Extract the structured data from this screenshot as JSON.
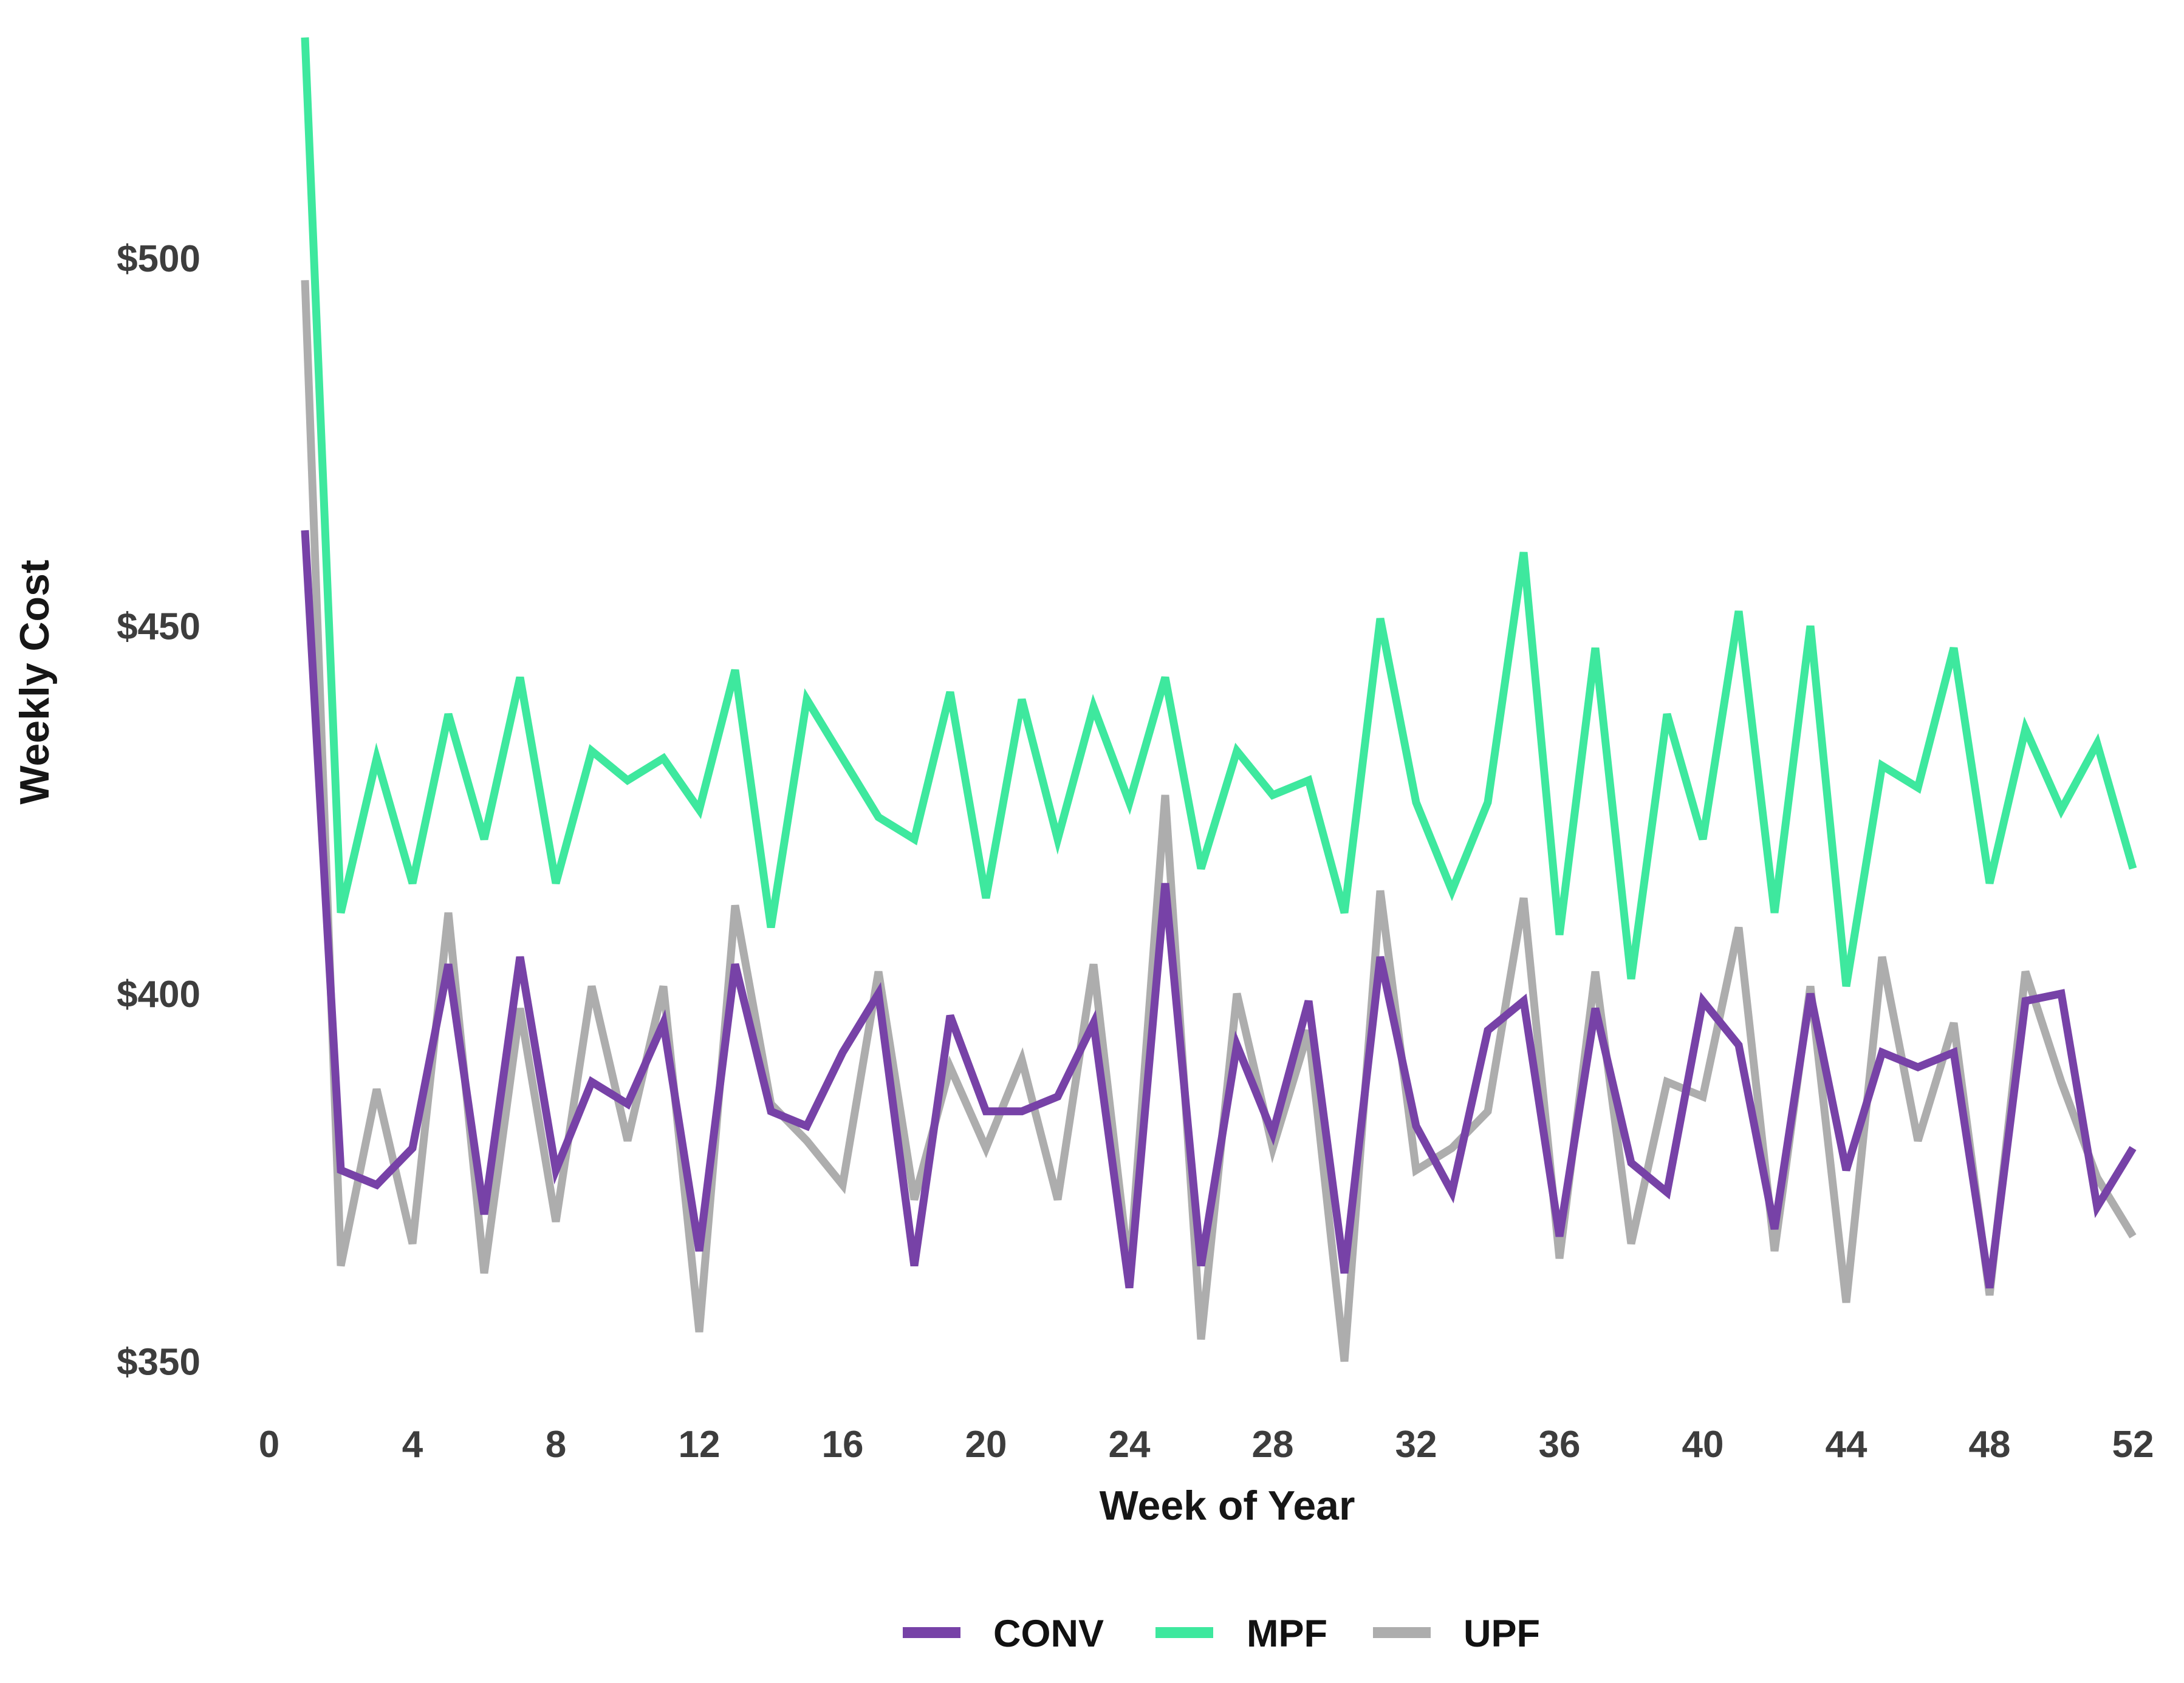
{
  "chart_data": {
    "type": "line",
    "title": "",
    "xlabel": "Week of Year",
    "ylabel": "Weekly Cost",
    "x_tick_values": [
      0,
      4,
      8,
      12,
      16,
      20,
      24,
      28,
      32,
      36,
      40,
      44,
      48,
      52
    ],
    "x_tick_labels": [
      "0",
      "4",
      "8",
      "12",
      "16",
      "20",
      "24",
      "28",
      "32",
      "36",
      "40",
      "44",
      "48",
      "52"
    ],
    "y_tick_values": [
      350,
      400,
      450,
      500
    ],
    "y_tick_labels": [
      "$350",
      "$400",
      "$450",
      "$500"
    ],
    "xlim": [
      0,
      53
    ],
    "ylim": [
      340,
      535
    ],
    "grid": false,
    "legend_position": "bottom",
    "weeks": [
      1,
      2,
      3,
      4,
      5,
      6,
      7,
      8,
      9,
      10,
      11,
      12,
      13,
      14,
      15,
      16,
      17,
      18,
      19,
      20,
      21,
      22,
      23,
      24,
      25,
      26,
      27,
      28,
      29,
      30,
      31,
      32,
      33,
      34,
      35,
      36,
      37,
      38,
      39,
      40,
      41,
      42,
      43,
      44,
      45,
      46,
      47,
      48,
      49,
      50,
      51,
      52
    ],
    "series": [
      {
        "name": "CONV",
        "color": "#7742a7",
        "values": [
          463,
          376,
          374,
          379,
          404,
          370,
          405,
          376,
          388,
          385,
          396,
          365,
          404,
          384,
          382,
          392,
          400,
          363,
          397,
          384,
          384,
          386,
          396,
          360,
          415,
          363,
          393,
          381,
          399,
          362,
          405,
          382,
          373,
          395,
          399,
          367,
          398,
          377,
          373,
          399,
          393,
          368,
          400,
          376,
          392,
          390,
          392,
          360,
          399,
          400,
          371,
          379
        ]
      },
      {
        "name": "MPF",
        "color": "#3ee89e",
        "values": [
          530,
          411,
          432,
          415,
          438,
          421,
          443,
          415,
          433,
          429,
          432,
          425,
          444,
          409,
          440,
          432,
          424,
          421,
          441,
          413,
          440,
          421,
          439,
          426,
          443,
          417,
          433,
          427,
          429,
          411,
          451,
          426,
          414,
          426,
          460,
          408,
          447,
          402,
          438,
          421,
          452,
          411,
          450,
          401,
          431,
          428,
          447,
          415,
          436,
          425,
          434,
          417
        ]
      },
      {
        "name": "UPF",
        "color": "#adadad",
        "values": [
          497,
          363,
          387,
          366,
          411,
          362,
          398,
          369,
          401,
          380,
          401,
          354,
          412,
          385,
          380,
          374,
          403,
          372,
          390,
          379,
          391,
          372,
          404,
          362,
          427,
          353,
          400,
          379,
          395,
          350,
          414,
          376,
          379,
          384,
          413,
          364,
          403,
          366,
          388,
          386,
          409,
          365,
          401,
          358,
          405,
          380,
          396,
          359,
          403,
          388,
          375,
          367
        ]
      }
    ]
  },
  "colors": {
    "background": "#ffffff",
    "tick_text": "#3d3d3d",
    "axis_title_text": "#161616",
    "legend_text": "#111111"
  }
}
